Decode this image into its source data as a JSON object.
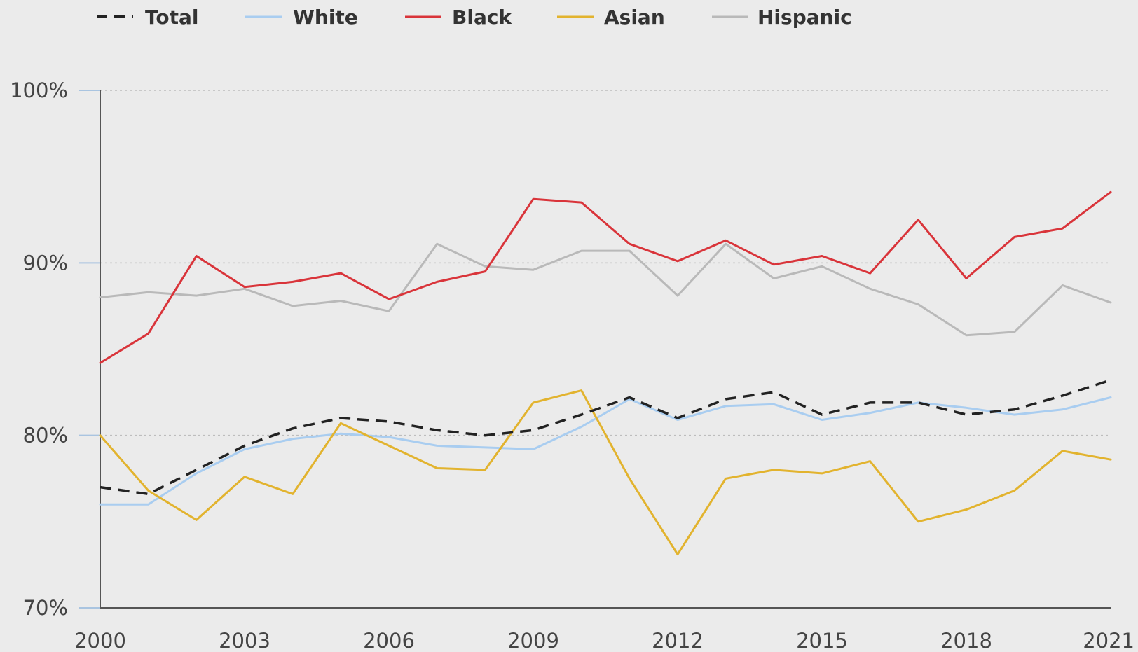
{
  "chart_data": {
    "type": "line",
    "title": "",
    "xlabel": "",
    "ylabel": "",
    "x": [
      2000,
      2001,
      2002,
      2003,
      2004,
      2005,
      2006,
      2007,
      2008,
      2009,
      2010,
      2011,
      2012,
      2013,
      2014,
      2015,
      2016,
      2017,
      2018,
      2019,
      2020,
      2021
    ],
    "x_tick_values": [
      2000,
      2003,
      2006,
      2009,
      2012,
      2015,
      2018,
      2021
    ],
    "x_tick_labels": [
      "2000",
      "2003",
      "2006",
      "2009",
      "2012",
      "2015",
      "2018",
      "2021"
    ],
    "y_tick_values": [
      70,
      80,
      90,
      100
    ],
    "y_tick_labels": [
      "70%",
      "80%",
      "90%",
      "100%"
    ],
    "ylim": [
      70,
      100
    ],
    "xlim": [
      2000,
      2021
    ],
    "grid": true,
    "legend_position": "top",
    "series": [
      {
        "name": "Total",
        "color": "#222222",
        "dashed": true,
        "values": [
          77.0,
          76.6,
          78.0,
          79.4,
          80.4,
          81.0,
          80.8,
          80.3,
          80.0,
          80.3,
          81.2,
          82.2,
          81.0,
          82.1,
          82.5,
          81.2,
          81.9,
          81.9,
          81.2,
          81.5,
          82.3,
          83.2
        ]
      },
      {
        "name": "White",
        "color": "#a9cdf0",
        "dashed": false,
        "values": [
          76.0,
          76.0,
          77.8,
          79.2,
          79.8,
          80.1,
          79.9,
          79.4,
          79.3,
          79.2,
          80.5,
          82.1,
          80.9,
          81.7,
          81.8,
          80.9,
          81.3,
          81.9,
          81.6,
          81.2,
          81.5,
          82.2
        ]
      },
      {
        "name": "Black",
        "color": "#d9343a",
        "dashed": false,
        "values": [
          84.2,
          85.9,
          90.4,
          88.6,
          88.9,
          89.4,
          87.9,
          88.9,
          89.5,
          93.7,
          93.5,
          91.1,
          90.1,
          91.3,
          89.9,
          90.4,
          89.4,
          92.5,
          89.1,
          91.5,
          92.0,
          94.1
        ]
      },
      {
        "name": "Asian",
        "color": "#e2b32e",
        "dashed": false,
        "values": [
          80.0,
          76.8,
          75.1,
          77.6,
          76.6,
          80.7,
          79.4,
          78.1,
          78.0,
          81.9,
          82.6,
          77.5,
          73.1,
          77.5,
          78.0,
          77.8,
          78.5,
          75.0,
          75.7,
          76.8,
          79.1,
          78.6
        ]
      },
      {
        "name": "Hispanic",
        "color": "#b9b9b9",
        "dashed": false,
        "values": [
          88.0,
          88.3,
          88.1,
          88.5,
          87.5,
          87.8,
          87.2,
          91.1,
          89.8,
          89.6,
          90.7,
          90.7,
          88.1,
          91.1,
          89.1,
          89.8,
          88.5,
          87.6,
          85.8,
          86.0,
          88.7,
          87.7
        ]
      }
    ]
  }
}
